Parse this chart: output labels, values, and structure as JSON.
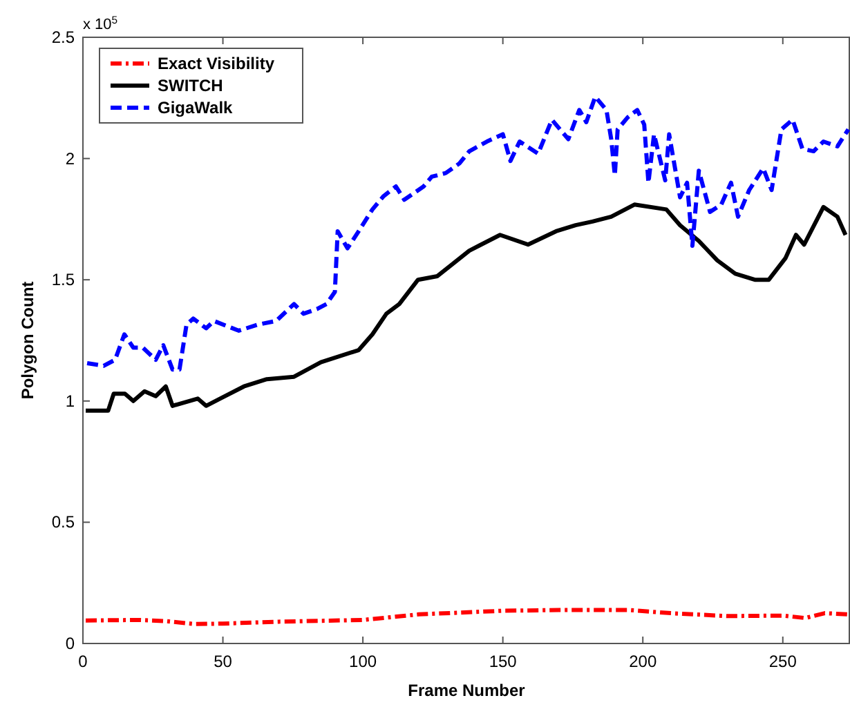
{
  "chart_data": {
    "type": "line",
    "xlabel": "Frame Number",
    "ylabel": "Polygon Count",
    "annotations": [
      "x 10$^{5}$"
    ],
    "xlim": [
      0,
      274
    ],
    "xticks": [
      0,
      50,
      100,
      150,
      200,
      250
    ],
    "ylim": [
      0,
      2.5
    ],
    "yticks": [
      0,
      0.5,
      1,
      1.5,
      2,
      2.5
    ],
    "grid": false,
    "legend": "top left",
    "series": [
      {
        "name": "Exact Visibility",
        "color": "#ff0000",
        "line_style": "dashdot",
        "x": [
          1,
          20,
          30,
          40,
          50,
          70,
          100,
          120,
          150,
          170,
          195,
          210,
          230,
          250,
          258,
          265,
          274
        ],
        "values": [
          0.095,
          0.097,
          0.092,
          0.08,
          0.082,
          0.09,
          0.097,
          0.12,
          0.135,
          0.138,
          0.138,
          0.125,
          0.113,
          0.115,
          0.105,
          0.125,
          0.12
        ]
      },
      {
        "name": "SWITCH",
        "color": "#000000",
        "line_style": "solid",
        "x": [
          1,
          9,
          11,
          15,
          18,
          22,
          26,
          29.6,
          32,
          38,
          41,
          44,
          49,
          57.5,
          65.7,
          75.4,
          85,
          98.5,
          103.4,
          108.4,
          113,
          119.7,
          126.6,
          131.5,
          138,
          141.4,
          149,
          159,
          169,
          176,
          182,
          188.7,
          197,
          208.4,
          213.3,
          220,
          226.6,
          233,
          240,
          245,
          251,
          254.7,
          257.6,
          264.5,
          269.5,
          272.4
        ],
        "values": [
          0.96,
          0.96,
          1.03,
          1.03,
          1.0,
          1.04,
          1.02,
          1.06,
          0.98,
          1.0,
          1.01,
          0.98,
          1.01,
          1.06,
          1.09,
          1.1,
          1.16,
          1.21,
          1.275,
          1.36,
          1.4,
          1.5,
          1.515,
          1.56,
          1.62,
          1.64,
          1.685,
          1.645,
          1.7,
          1.725,
          1.74,
          1.76,
          1.81,
          1.79,
          1.725,
          1.66,
          1.58,
          1.525,
          1.5,
          1.5,
          1.59,
          1.685,
          1.645,
          1.8,
          1.76,
          1.685
        ]
      },
      {
        "name": "GigaWalk",
        "color": "#0000ff",
        "line_style": "dashed",
        "x": [
          1.5,
          7.4,
          11.5,
          14.8,
          18,
          21.4,
          26,
          28.7,
          32,
          34.5,
          37,
          39.4,
          44,
          46.8,
          55.7,
          62.5,
          69,
          75.4,
          78.8,
          83.7,
          87,
          90,
          91,
          94.5,
          98.5,
          103.4,
          107.4,
          111.8,
          114.8,
          121.7,
          124.6,
          129.6,
          134.5,
          138,
          144.3,
          150,
          152.7,
          156,
          162.6,
          167.5,
          173.4,
          177.3,
          179.8,
          183,
          187,
          188.7,
          190,
          191,
          194.6,
          198,
          200.5,
          202,
          204,
          208,
          209.4,
          213.3,
          215.8,
          217.7,
          220,
          224,
          228,
          231.5,
          234,
          238,
          243,
          246,
          249.5,
          253.5,
          257,
          261,
          264.5,
          269.5,
          273.4
        ],
        "values": [
          1.156,
          1.145,
          1.17,
          1.275,
          1.22,
          1.22,
          1.17,
          1.23,
          1.13,
          1.13,
          1.315,
          1.34,
          1.3,
          1.33,
          1.29,
          1.315,
          1.33,
          1.4,
          1.36,
          1.38,
          1.4,
          1.45,
          1.7,
          1.63,
          1.7,
          1.79,
          1.845,
          1.885,
          1.83,
          1.885,
          1.925,
          1.94,
          1.98,
          2.03,
          2.07,
          2.1,
          1.99,
          2.07,
          2.02,
          2.16,
          2.08,
          2.2,
          2.15,
          2.255,
          2.2,
          2.08,
          1.93,
          2.12,
          2.17,
          2.2,
          2.14,
          1.9,
          2.1,
          1.91,
          2.1,
          1.84,
          1.9,
          1.64,
          1.95,
          1.78,
          1.81,
          1.9,
          1.76,
          1.87,
          1.96,
          1.87,
          2.12,
          2.16,
          2.04,
          2.03,
          2.07,
          2.05,
          2.12
        ]
      }
    ]
  }
}
